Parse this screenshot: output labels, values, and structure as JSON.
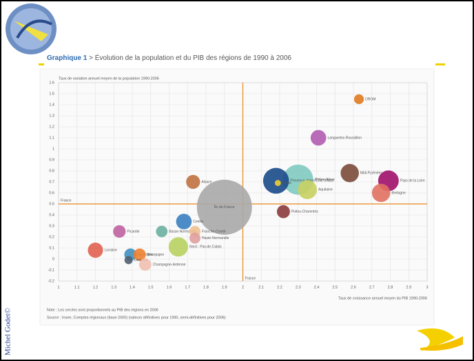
{
  "slide": {
    "author": "Michel Godet©"
  },
  "chart_data": {
    "type": "bubble",
    "title_prefix": "Graphique 1",
    "title": "> Évolution de la population et du PIB des régions de 1990 à 2006",
    "y_label": "Taux de variation annuel moyen de la population 1990-2006",
    "x_label": "Taux de croissance annuel moyen du PIB 1990-2006",
    "notes": [
      "Note : Les cercles sont proportionnels au PIB des régions en 2006",
      "Source : Insee, Comptes régionaux (base 2000) (valeurs définitives pour 1990, semi-définitives pour 2006)"
    ],
    "xlim": [
      1,
      3
    ],
    "xticks": [
      1,
      1.1,
      1.2,
      1.3,
      1.4,
      1.5,
      1.6,
      1.7,
      1.8,
      1.9,
      2,
      2.1,
      2.2,
      2.3,
      2.4,
      2.5,
      2.6,
      2.7,
      2.8,
      2.9,
      3
    ],
    "ylim": [
      -0.2,
      1.6
    ],
    "yticks": [
      {
        "value": -0.2,
        "label": "-0.2"
      },
      {
        "value": -0.1,
        "label": "-0.1"
      },
      0,
      0.1,
      0.2,
      0.3,
      0.4,
      0.5,
      0.6,
      0.7,
      0.8,
      0.9,
      1,
      1.1,
      1.2,
      1.3,
      1.4,
      1.5,
      1.6
    ],
    "grid": true,
    "reference": {
      "x": 2,
      "y": 0.5,
      "label": "France",
      "color": "#e8861a"
    },
    "points": [
      {
        "name": "Île-de-France",
        "x": 1.9,
        "y": 0.47,
        "size": 500,
        "color": "#a8a8a8"
      },
      {
        "name": "Rhône-Alpes",
        "x": 2.3,
        "y": 0.72,
        "size": 150,
        "color": "#7fcac0"
      },
      {
        "name": "Provence-Alpes-Côte d'Azur",
        "x": 2.18,
        "y": 0.71,
        "size": 110,
        "color": "#1a4a8a"
      },
      {
        "name": "Corse",
        "x": 2.19,
        "y": 0.69,
        "size": 6,
        "color": "#f0d030"
      },
      {
        "name": "Aquitaine",
        "x": 2.35,
        "y": 0.63,
        "size": 60,
        "color": "#c8d060"
      },
      {
        "name": "Poitou-Charentes",
        "x": 2.22,
        "y": 0.43,
        "size": 28,
        "color": "#8a3a3a"
      },
      {
        "name": "DROM",
        "x": 2.63,
        "y": 1.45,
        "size": 16,
        "color": "#e07a20"
      },
      {
        "name": "Languedoc-Roussillon",
        "x": 2.41,
        "y": 1.1,
        "size": 40,
        "color": "#b05cb0"
      },
      {
        "name": "Midi-Pyrénées",
        "x": 2.58,
        "y": 0.78,
        "size": 55,
        "color": "#7a4a3a"
      },
      {
        "name": "Pays de la Loire",
        "x": 2.79,
        "y": 0.71,
        "size": 70,
        "color": "#a0106a"
      },
      {
        "name": "Bretagne",
        "x": 2.75,
        "y": 0.6,
        "size": 55,
        "color": "#e07060"
      },
      {
        "name": "Alsace",
        "x": 1.73,
        "y": 0.7,
        "size": 32,
        "color": "#c07040"
      },
      {
        "name": "Centre",
        "x": 1.68,
        "y": 0.34,
        "size": 40,
        "color": "#3a80c0"
      },
      {
        "name": "Basse-Normandie",
        "x": 1.56,
        "y": 0.25,
        "size": 22,
        "color": "#6ab0a0"
      },
      {
        "name": "Franche-Comté",
        "x": 1.74,
        "y": 0.25,
        "size": 20,
        "color": "#f0c090"
      },
      {
        "name": "Haute-Normandie",
        "x": 1.74,
        "y": 0.19,
        "size": 20,
        "color": "#e0a0a0"
      },
      {
        "name": "Nord - Pas-de-Calais",
        "x": 1.65,
        "y": 0.11,
        "size": 62,
        "color": "#b8d060"
      },
      {
        "name": "Picardie",
        "x": 1.33,
        "y": 0.25,
        "size": 26,
        "color": "#c060a0"
      },
      {
        "name": "Lorraine",
        "x": 1.2,
        "y": 0.08,
        "size": 38,
        "color": "#e06050"
      },
      {
        "name": "Auvergne",
        "x": 1.39,
        "y": 0.04,
        "size": 25,
        "color": "#4090c0"
      },
      {
        "name": "Bourgogne",
        "x": 1.44,
        "y": 0.04,
        "size": 25,
        "color": "#f08030"
      },
      {
        "name": "Limousin",
        "x": 1.38,
        "y": -0.01,
        "size": 11,
        "color": "#506070"
      },
      {
        "name": "Champagne-Ardenne",
        "x": 1.47,
        "y": -0.05,
        "size": 25,
        "color": "#f0c0b0"
      }
    ]
  }
}
